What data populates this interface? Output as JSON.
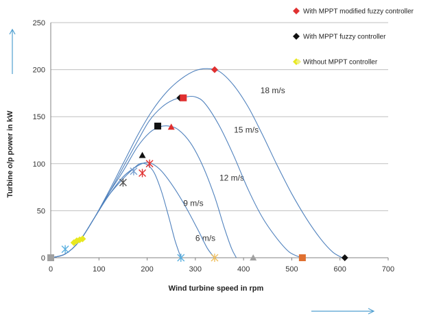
{
  "chart_data": {
    "type": "line",
    "title": "",
    "xlabel": "Wind turbine speed in rpm",
    "ylabel": "Turbine o/p power in kW",
    "xlim": [
      0,
      700
    ],
    "ylim": [
      0,
      250
    ],
    "xticks": [
      0,
      100,
      200,
      300,
      400,
      500,
      600,
      700
    ],
    "yticks": [
      0,
      50,
      100,
      150,
      200,
      250
    ],
    "xtick_labels": [
      "0",
      "100",
      "200",
      "300",
      "400",
      "500",
      "600",
      "700"
    ],
    "ytick_labels": [
      "0",
      "50",
      "100",
      "150",
      "200",
      "250"
    ],
    "grid": "horizontal",
    "legend_position": "top-right",
    "legend": [
      {
        "label": "With MPPT modified fuzzy controller",
        "color": "#e03030",
        "marker": "diamond"
      },
      {
        "label": "With MPPT fuzzy controller",
        "color": "#111111",
        "marker": "diamond"
      },
      {
        "label": "Without MPPT controller",
        "color": "#e8e820",
        "marker": "diamond"
      }
    ],
    "curves": [
      {
        "label": "6 m/s",
        "label_at": [
          300,
          18
        ],
        "points": [
          [
            0,
            0
          ],
          [
            30,
            4
          ],
          [
            60,
            18
          ],
          [
            90,
            42
          ],
          [
            120,
            66
          ],
          [
            150,
            84
          ],
          [
            170,
            94
          ],
          [
            185,
            100
          ],
          [
            200,
            99
          ],
          [
            215,
            90
          ],
          [
            230,
            70
          ],
          [
            245,
            43
          ],
          [
            258,
            18
          ],
          [
            270,
            0
          ]
        ]
      },
      {
        "label": "9 m/s",
        "label_at": [
          275,
          55
        ],
        "points": [
          [
            0,
            0
          ],
          [
            30,
            4
          ],
          [
            60,
            18
          ],
          [
            90,
            42
          ],
          [
            120,
            66
          ],
          [
            150,
            86
          ],
          [
            175,
            96
          ],
          [
            195,
            101
          ],
          [
            210,
            100
          ],
          [
            230,
            92
          ],
          [
            255,
            75
          ],
          [
            280,
            54
          ],
          [
            305,
            30
          ],
          [
            325,
            10
          ],
          [
            340,
            0
          ]
        ]
      },
      {
        "label": "12 m/s",
        "label_at": [
          350,
          82
        ],
        "points": [
          [
            0,
            0
          ],
          [
            30,
            4
          ],
          [
            60,
            18
          ],
          [
            90,
            42
          ],
          [
            120,
            68
          ],
          [
            150,
            92
          ],
          [
            180,
            118
          ],
          [
            205,
            133
          ],
          [
            225,
            139
          ],
          [
            245,
            140
          ],
          [
            265,
            136
          ],
          [
            290,
            122
          ],
          [
            315,
            98
          ],
          [
            340,
            65
          ],
          [
            360,
            32
          ],
          [
            375,
            10
          ],
          [
            385,
            0
          ]
        ]
      },
      {
        "label": "15 m/s",
        "label_at": [
          380,
          133
        ],
        "points": [
          [
            0,
            0
          ],
          [
            30,
            4
          ],
          [
            60,
            18
          ],
          [
            90,
            42
          ],
          [
            120,
            68
          ],
          [
            150,
            96
          ],
          [
            180,
            124
          ],
          [
            205,
            146
          ],
          [
            230,
            160
          ],
          [
            255,
            168
          ],
          [
            280,
            171
          ],
          [
            300,
            171
          ],
          [
            320,
            164
          ],
          [
            350,
            140
          ],
          [
            380,
            108
          ],
          [
            410,
            72
          ],
          [
            440,
            42
          ],
          [
            470,
            20
          ],
          [
            495,
            6
          ],
          [
            520,
            0
          ]
        ]
      },
      {
        "label": "18 m/s",
        "label_at": [
          435,
          175
        ],
        "points": [
          [
            0,
            0
          ],
          [
            30,
            4
          ],
          [
            60,
            18
          ],
          [
            90,
            42
          ],
          [
            120,
            70
          ],
          [
            150,
            100
          ],
          [
            180,
            130
          ],
          [
            210,
            156
          ],
          [
            240,
            176
          ],
          [
            270,
            190
          ],
          [
            300,
            199
          ],
          [
            325,
            201
          ],
          [
            350,
            198
          ],
          [
            380,
            183
          ],
          [
            410,
            160
          ],
          [
            440,
            130
          ],
          [
            470,
            98
          ],
          [
            500,
            68
          ],
          [
            530,
            42
          ],
          [
            560,
            20
          ],
          [
            585,
            6
          ],
          [
            605,
            0
          ]
        ]
      }
    ],
    "markers": [
      {
        "shape": "square",
        "color": "#e07030",
        "x": 0,
        "y": 0
      },
      {
        "shape": "square",
        "color": "#a0a0a0",
        "x": 0,
        "y": 0
      },
      {
        "shape": "star",
        "color": "#5ab0e0",
        "x": 30,
        "y": 9
      },
      {
        "shape": "diamond",
        "color": "#e8e820",
        "x": 48,
        "y": 16
      },
      {
        "shape": "diamond",
        "color": "#e8e820",
        "x": 54,
        "y": 18
      },
      {
        "shape": "diamond",
        "color": "#e8e820",
        "x": 60,
        "y": 19
      },
      {
        "shape": "diamond",
        "color": "#e8e820",
        "x": 66,
        "y": 20
      },
      {
        "shape": "star",
        "color": "#555555",
        "x": 150,
        "y": 80
      },
      {
        "shape": "star",
        "color": "#7aa0d0",
        "x": 172,
        "y": 92
      },
      {
        "shape": "star",
        "color": "#e03030",
        "x": 190,
        "y": 90
      },
      {
        "shape": "star",
        "color": "#e03030",
        "x": 205,
        "y": 100
      },
      {
        "shape": "triangle",
        "color": "#111111",
        "x": 190,
        "y": 109
      },
      {
        "shape": "square",
        "color": "#111111",
        "x": 222,
        "y": 140
      },
      {
        "shape": "triangle",
        "color": "#e03030",
        "x": 250,
        "y": 139
      },
      {
        "shape": "diamond",
        "color": "#111111",
        "x": 268,
        "y": 170
      },
      {
        "shape": "square",
        "color": "#e03030",
        "x": 275,
        "y": 170
      },
      {
        "shape": "diamond",
        "color": "#e03030",
        "x": 340,
        "y": 200
      },
      {
        "shape": "star",
        "color": "#5ab0e0",
        "x": 270,
        "y": 0
      },
      {
        "shape": "star",
        "color": "#f0c060",
        "x": 340,
        "y": 0
      },
      {
        "shape": "triangle",
        "color": "#a0a0a0",
        "x": 420,
        "y": 0
      },
      {
        "shape": "square",
        "color": "#e07030",
        "x": 522,
        "y": 0
      },
      {
        "shape": "diamond",
        "color": "#111111",
        "x": 610,
        "y": 0
      }
    ]
  }
}
